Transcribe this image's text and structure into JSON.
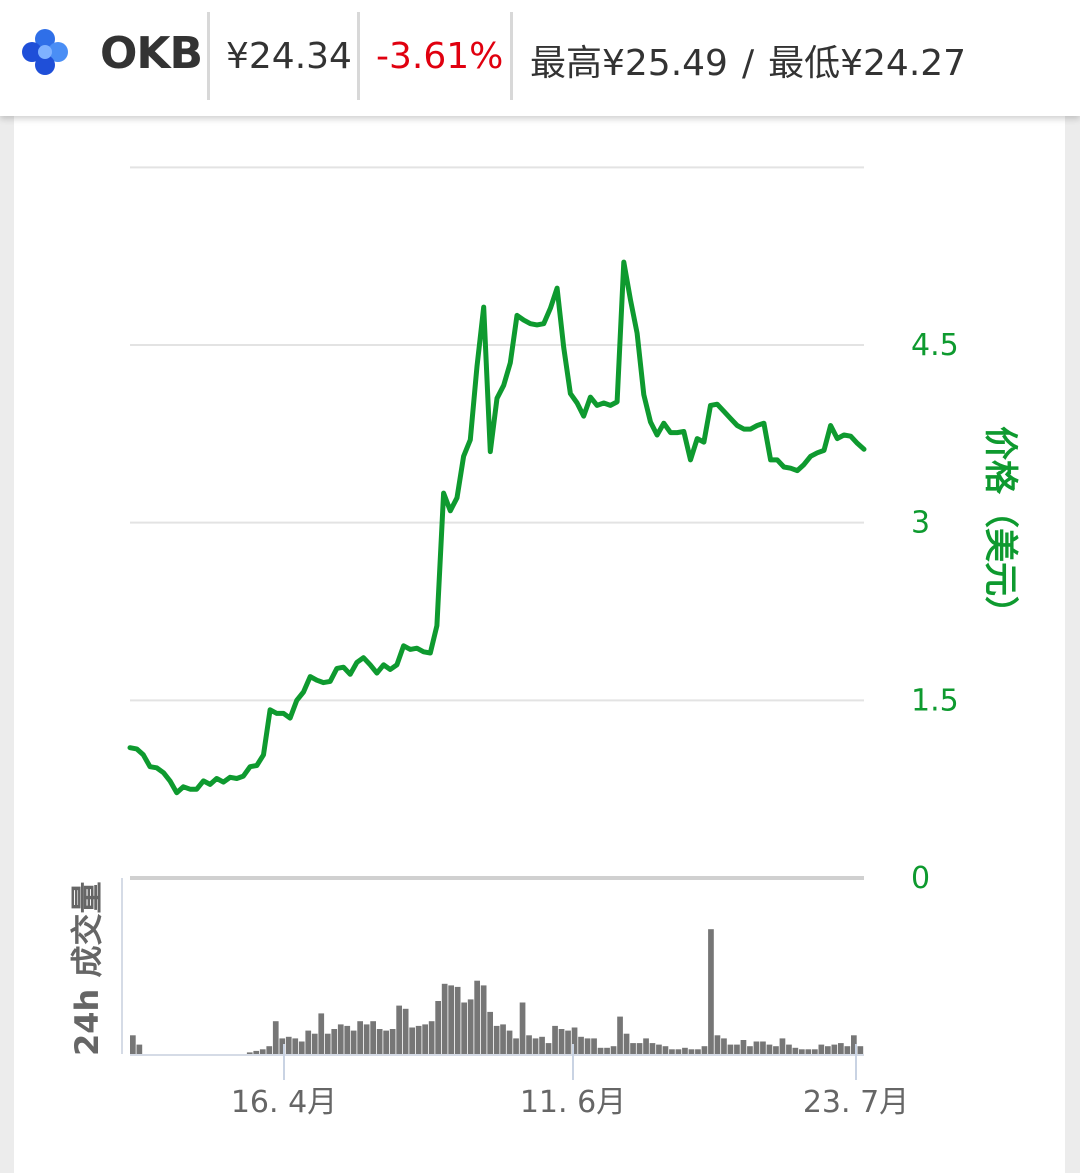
{
  "header": {
    "ticker": "OKB",
    "price": "¥24.34",
    "change": "-3.61%",
    "high": "最高¥25.49",
    "separator": "/",
    "low": "最低¥24.27",
    "logo_icon": "okb-logo-icon"
  },
  "colors": {
    "price_line": "#0e9a2f",
    "volume_bar": "#767676",
    "negative": "#e0000f",
    "grid": "#e3e3e3"
  },
  "chart_data": {
    "type": "line",
    "y_axis_label": "价格（美元）",
    "y_ticks": [
      "4.5",
      "3",
      "1.5",
      "0"
    ],
    "volume_axis_label": "24h 成交量",
    "x_ticks": [
      "16. 4月",
      "11. 6月",
      "23. 7月"
    ],
    "price_series": [
      1.1,
      1.09,
      1.04,
      0.94,
      0.93,
      0.89,
      0.82,
      0.72,
      0.77,
      0.75,
      0.75,
      0.82,
      0.79,
      0.84,
      0.81,
      0.85,
      0.84,
      0.86,
      0.94,
      0.95,
      1.04,
      1.42,
      1.39,
      1.39,
      1.35,
      1.5,
      1.57,
      1.7,
      1.67,
      1.65,
      1.66,
      1.77,
      1.78,
      1.72,
      1.82,
      1.86,
      1.8,
      1.73,
      1.8,
      1.76,
      1.8,
      1.96,
      1.93,
      1.94,
      1.91,
      1.9,
      2.13,
      3.25,
      3.1,
      3.21,
      3.56,
      3.7,
      4.32,
      4.82,
      3.6,
      4.05,
      4.16,
      4.35,
      4.75,
      4.71,
      4.68,
      4.67,
      4.68,
      4.81,
      4.98,
      4.48,
      4.09,
      4.01,
      3.9,
      4.06,
      3.99,
      4.01,
      3.99,
      4.02,
      5.2,
      4.88,
      4.6,
      4.08,
      3.85,
      3.74,
      3.84,
      3.76,
      3.76,
      3.77,
      3.53,
      3.71,
      3.68,
      3.99,
      4.0,
      3.94,
      3.88,
      3.82,
      3.79,
      3.79,
      3.82,
      3.84,
      3.53,
      3.53,
      3.47,
      3.46,
      3.44,
      3.49,
      3.56,
      3.59,
      3.61,
      3.82,
      3.71,
      3.74,
      3.73,
      3.67,
      3.62
    ],
    "volume_series": [
      0.12,
      0.06,
      0,
      0,
      0,
      0,
      0,
      0,
      0,
      0,
      0,
      0,
      0,
      0,
      0,
      0,
      0,
      0,
      0.01,
      0.02,
      0.03,
      0.05,
      0.21,
      0.1,
      0.11,
      0.1,
      0.08,
      0.15,
      0.13,
      0.26,
      0.13,
      0.16,
      0.19,
      0.18,
      0.15,
      0.21,
      0.19,
      0.21,
      0.16,
      0.15,
      0.16,
      0.31,
      0.29,
      0.17,
      0.18,
      0.19,
      0.21,
      0.34,
      0.45,
      0.44,
      0.43,
      0.33,
      0.35,
      0.47,
      0.44,
      0.27,
      0.18,
      0.19,
      0.15,
      0.1,
      0.33,
      0.12,
      0.1,
      0.11,
      0.07,
      0.18,
      0.16,
      0.15,
      0.17,
      0.11,
      0.1,
      0.1,
      0.04,
      0.04,
      0.05,
      0.24,
      0.13,
      0.07,
      0.07,
      0.1,
      0.07,
      0.06,
      0.05,
      0.03,
      0.03,
      0.04,
      0.03,
      0.03,
      0.05,
      0.8,
      0.12,
      0.1,
      0.06,
      0.06,
      0.09,
      0.05,
      0.08,
      0.08,
      0.06,
      0.05,
      0.1,
      0.06,
      0.04,
      0.03,
      0.03,
      0.03,
      0.06,
      0.05,
      0.06,
      0.07,
      0.05,
      0.12,
      0.05
    ],
    "price_ylim": [
      0,
      6
    ],
    "grid": true
  }
}
